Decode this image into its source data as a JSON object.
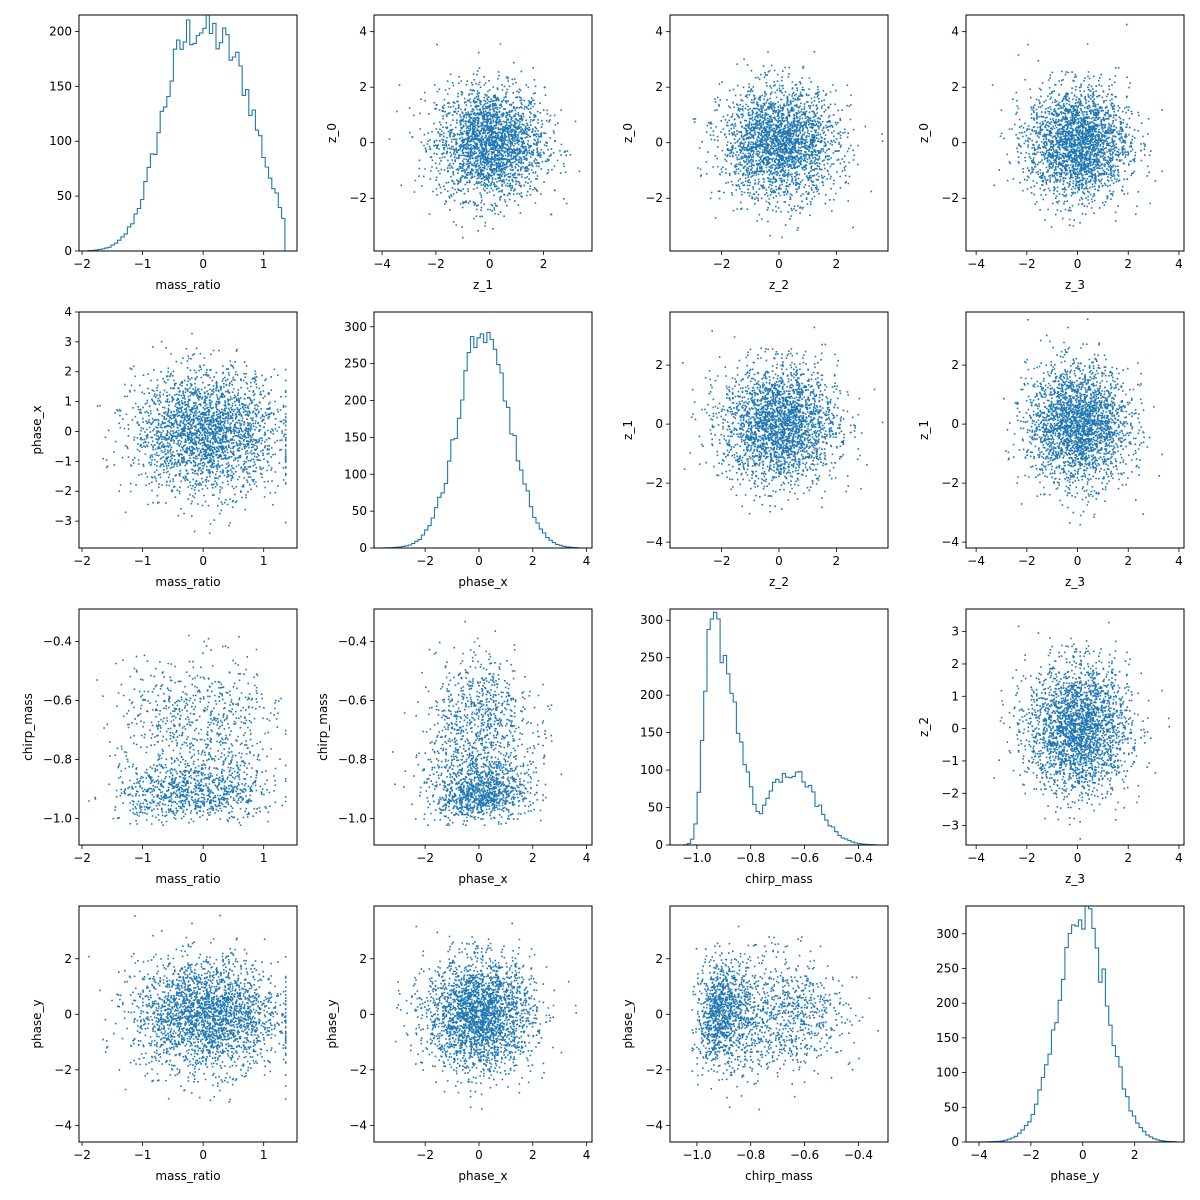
{
  "figure": {
    "background": "#ffffff"
  },
  "colors": {
    "series": "#1f77b4"
  },
  "chart_data": [
    {
      "type": "histogram",
      "xlabel": "mass_ratio",
      "ylabel": "",
      "xlim": [
        -2.05,
        1.55
      ],
      "ylim": [
        0,
        215
      ],
      "xticks": [
        "−2",
        "−1",
        "0",
        "1"
      ],
      "xtick_vals": [
        -2,
        -1,
        0,
        1
      ],
      "yticks": [
        "0",
        "50",
        "100",
        "150",
        "200"
      ],
      "ytick_vals": [
        0,
        50,
        100,
        150,
        200
      ],
      "dist": {
        "kind": "bimodal",
        "centers": [
          -0.3,
          0.55
        ],
        "sigma": 0.45,
        "range": [
          -1.9,
          1.35
        ],
        "peak": 205
      }
    },
    {
      "type": "scatter",
      "xlabel": "z_1",
      "ylabel": "z_0",
      "xlim": [
        -4.3,
        3.8
      ],
      "ylim": [
        -3.9,
        4.6
      ],
      "xticks": [
        "−4",
        "−2",
        "0",
        "2"
      ],
      "xtick_vals": [
        -4,
        -2,
        0,
        2
      ],
      "yticks": [
        "−2",
        "0",
        "2",
        "4"
      ],
      "ytick_vals": [
        -2,
        0,
        2,
        4
      ],
      "cloud": {
        "cx": 0,
        "cy": 0,
        "sx": 1,
        "sy": 1,
        "n": 2500
      }
    },
    {
      "type": "scatter",
      "xlabel": "z_2",
      "ylabel": "z_0",
      "xlim": [
        -3.8,
        3.8
      ],
      "ylim": [
        -3.9,
        4.6
      ],
      "xticks": [
        "−2",
        "0",
        "2"
      ],
      "xtick_vals": [
        -2,
        0,
        2
      ],
      "yticks": [
        "−2",
        "0",
        "2",
        "4"
      ],
      "ytick_vals": [
        -2,
        0,
        2,
        4
      ],
      "cloud": {
        "cx": 0,
        "cy": 0,
        "sx": 1,
        "sy": 1,
        "n": 2500
      }
    },
    {
      "type": "scatter",
      "xlabel": "z_3",
      "ylabel": "z_0",
      "xlim": [
        -4.4,
        4.2
      ],
      "ylim": [
        -3.9,
        4.6
      ],
      "xticks": [
        "−4",
        "−2",
        "0",
        "2",
        "4"
      ],
      "xtick_vals": [
        -4,
        -2,
        0,
        2,
        4
      ],
      "yticks": [
        "−2",
        "0",
        "2",
        "4"
      ],
      "ytick_vals": [
        -2,
        0,
        2,
        4
      ],
      "cloud": {
        "cx": 0,
        "cy": 0,
        "sx": 1,
        "sy": 1,
        "n": 2500
      }
    },
    {
      "type": "scatter",
      "xlabel": "mass_ratio",
      "ylabel": "phase_x",
      "xlim": [
        -2.05,
        1.55
      ],
      "ylim": [
        -3.9,
        4.0
      ],
      "xticks": [
        "−2",
        "−1",
        "0",
        "1"
      ],
      "xtick_vals": [
        -2,
        -1,
        0,
        1
      ],
      "yticks": [
        "−3",
        "−2",
        "−1",
        "0",
        "1",
        "2",
        "3",
        "4"
      ],
      "ytick_vals": [
        -3,
        -2,
        -1,
        0,
        1,
        2,
        3,
        4
      ],
      "cloud": {
        "cx": 0.05,
        "cy": 0,
        "sx": 0.6,
        "sy": 1,
        "xrange": [
          -1.9,
          1.35
        ],
        "n": 2500
      }
    },
    {
      "type": "histogram",
      "xlabel": "phase_x",
      "ylabel": "",
      "xlim": [
        -3.9,
        4.2
      ],
      "ylim": [
        0,
        320
      ],
      "xticks": [
        "−2",
        "0",
        "2",
        "4"
      ],
      "xtick_vals": [
        -2,
        0,
        2,
        4
      ],
      "yticks": [
        "0",
        "50",
        "100",
        "150",
        "200",
        "250",
        "300"
      ],
      "ytick_vals": [
        0,
        50,
        100,
        150,
        200,
        250,
        300
      ],
      "dist": {
        "kind": "normal",
        "centers": [
          0.2
        ],
        "sigma": 0.95,
        "range": [
          -3.6,
          3.7
        ],
        "peak": 300
      }
    },
    {
      "type": "scatter",
      "xlabel": "z_2",
      "ylabel": "z_1",
      "xlim": [
        -3.8,
        3.8
      ],
      "ylim": [
        -4.2,
        3.8
      ],
      "xticks": [
        "−2",
        "0",
        "2"
      ],
      "xtick_vals": [
        -2,
        0,
        2
      ],
      "yticks": [
        "−4",
        "−2",
        "0",
        "2"
      ],
      "ytick_vals": [
        -4,
        -2,
        0,
        2
      ],
      "cloud": {
        "cx": 0,
        "cy": 0,
        "sx": 1,
        "sy": 1,
        "n": 2500
      }
    },
    {
      "type": "scatter",
      "xlabel": "z_3",
      "ylabel": "z_1",
      "xlim": [
        -4.4,
        4.2
      ],
      "ylim": [
        -4.2,
        3.8
      ],
      "xticks": [
        "−4",
        "−2",
        "0",
        "2",
        "4"
      ],
      "xtick_vals": [
        -4,
        -2,
        0,
        2,
        4
      ],
      "yticks": [
        "−4",
        "−2",
        "0",
        "2"
      ],
      "ytick_vals": [
        -4,
        -2,
        0,
        2
      ],
      "cloud": {
        "cx": 0,
        "cy": 0,
        "sx": 1,
        "sy": 1,
        "n": 2500
      }
    },
    {
      "type": "scatter",
      "xlabel": "mass_ratio",
      "ylabel": "chirp_mass",
      "xlim": [
        -2.05,
        1.55
      ],
      "ylim": [
        -1.09,
        -0.29
      ],
      "xticks": [
        "−2",
        "−1",
        "0",
        "1"
      ],
      "xtick_vals": [
        -2,
        -1,
        0,
        1
      ],
      "yticks": [
        "−1.0",
        "−0.8",
        "−0.6",
        "−0.4"
      ],
      "ytick_vals": [
        -1.0,
        -0.8,
        -0.6,
        -0.4
      ],
      "cloud": {
        "kind": "chirp",
        "xrange": [
          -1.9,
          1.35
        ],
        "n": 2500
      }
    },
    {
      "type": "scatter",
      "xlabel": "phase_x",
      "ylabel": "chirp_mass",
      "xlim": [
        -3.9,
        4.2
      ],
      "ylim": [
        -1.09,
        -0.29
      ],
      "xticks": [
        "−2",
        "0",
        "2",
        "4"
      ],
      "xtick_vals": [
        -2,
        0,
        2,
        4
      ],
      "yticks": [
        "−1.0",
        "−0.8",
        "−0.6",
        "−0.4"
      ],
      "ytick_vals": [
        -1.0,
        -0.8,
        -0.6,
        -0.4
      ],
      "cloud": {
        "kind": "chirp2",
        "n": 2500
      }
    },
    {
      "type": "histogram",
      "xlabel": "chirp_mass",
      "ylabel": "",
      "xlim": [
        -1.1,
        -0.29
      ],
      "ylim": [
        0,
        315
      ],
      "xticks": [
        "−1.0",
        "−0.8",
        "−0.6",
        "−0.4"
      ],
      "xtick_vals": [
        -1.0,
        -0.8,
        -0.6,
        -0.4
      ],
      "yticks": [
        "0",
        "50",
        "100",
        "150",
        "200",
        "250",
        "300"
      ],
      "ytick_vals": [
        0,
        50,
        100,
        150,
        200,
        250,
        300
      ],
      "dist": {
        "kind": "chirp",
        "range": [
          -1.06,
          -0.33
        ],
        "peak": 300
      }
    },
    {
      "type": "scatter",
      "xlabel": "z_3",
      "ylabel": "z_2",
      "xlim": [
        -4.4,
        4.2
      ],
      "ylim": [
        -3.6,
        3.7
      ],
      "xticks": [
        "−4",
        "−2",
        "0",
        "2",
        "4"
      ],
      "xtick_vals": [
        -4,
        -2,
        0,
        2,
        4
      ],
      "yticks": [
        "−3",
        "−2",
        "−1",
        "0",
        "1",
        "2",
        "3"
      ],
      "ytick_vals": [
        -3,
        -2,
        -1,
        0,
        1,
        2,
        3
      ],
      "cloud": {
        "cx": 0,
        "cy": 0,
        "sx": 1,
        "sy": 1,
        "n": 2500
      }
    },
    {
      "type": "scatter",
      "xlabel": "mass_ratio",
      "ylabel": "phase_y",
      "xlim": [
        -2.05,
        1.55
      ],
      "ylim": [
        -4.6,
        3.9
      ],
      "xticks": [
        "−2",
        "−1",
        "0",
        "1"
      ],
      "xtick_vals": [
        -2,
        -1,
        0,
        1
      ],
      "yticks": [
        "−4",
        "−2",
        "0",
        "2"
      ],
      "ytick_vals": [
        -4,
        -2,
        0,
        2
      ],
      "cloud": {
        "cx": 0.05,
        "cy": 0,
        "sx": 0.6,
        "sy": 1,
        "xrange": [
          -1.9,
          1.35
        ],
        "n": 2500
      }
    },
    {
      "type": "scatter",
      "xlabel": "phase_x",
      "ylabel": "phase_y",
      "xlim": [
        -3.9,
        4.2
      ],
      "ylim": [
        -4.6,
        3.9
      ],
      "xticks": [
        "−2",
        "0",
        "2",
        "4"
      ],
      "xtick_vals": [
        -2,
        0,
        2,
        4
      ],
      "yticks": [
        "−4",
        "−2",
        "0",
        "2"
      ],
      "ytick_vals": [
        -4,
        -2,
        0,
        2
      ],
      "cloud": {
        "cx": 0,
        "cy": 0,
        "sx": 1,
        "sy": 1,
        "n": 2500
      }
    },
    {
      "type": "scatter",
      "xlabel": "chirp_mass",
      "ylabel": "phase_y",
      "xlim": [
        -1.1,
        -0.29
      ],
      "ylim": [
        -4.6,
        3.9
      ],
      "xticks": [
        "−1.0",
        "−0.8",
        "−0.6",
        "−0.4"
      ],
      "xtick_vals": [
        -1.0,
        -0.8,
        -0.6,
        -0.4
      ],
      "yticks": [
        "−4",
        "−2",
        "0",
        "2"
      ],
      "ytick_vals": [
        -4,
        -2,
        0,
        2
      ],
      "cloud": {
        "kind": "chirpx",
        "n": 2500
      }
    },
    {
      "type": "histogram",
      "xlabel": "phase_y",
      "ylabel": "",
      "xlim": [
        -4.5,
        3.9
      ],
      "ylim": [
        0,
        340
      ],
      "xticks": [
        "−4",
        "−2",
        "0",
        "2"
      ],
      "xtick_vals": [
        -4,
        -2,
        0,
        2
      ],
      "yticks": [
        "0",
        "50",
        "100",
        "150",
        "200",
        "250",
        "300"
      ],
      "ytick_vals": [
        0,
        50,
        100,
        150,
        200,
        250,
        300
      ],
      "dist": {
        "kind": "normal",
        "centers": [
          0
        ],
        "sigma": 0.95,
        "range": [
          -4.2,
          3.6
        ],
        "peak": 325
      }
    }
  ]
}
